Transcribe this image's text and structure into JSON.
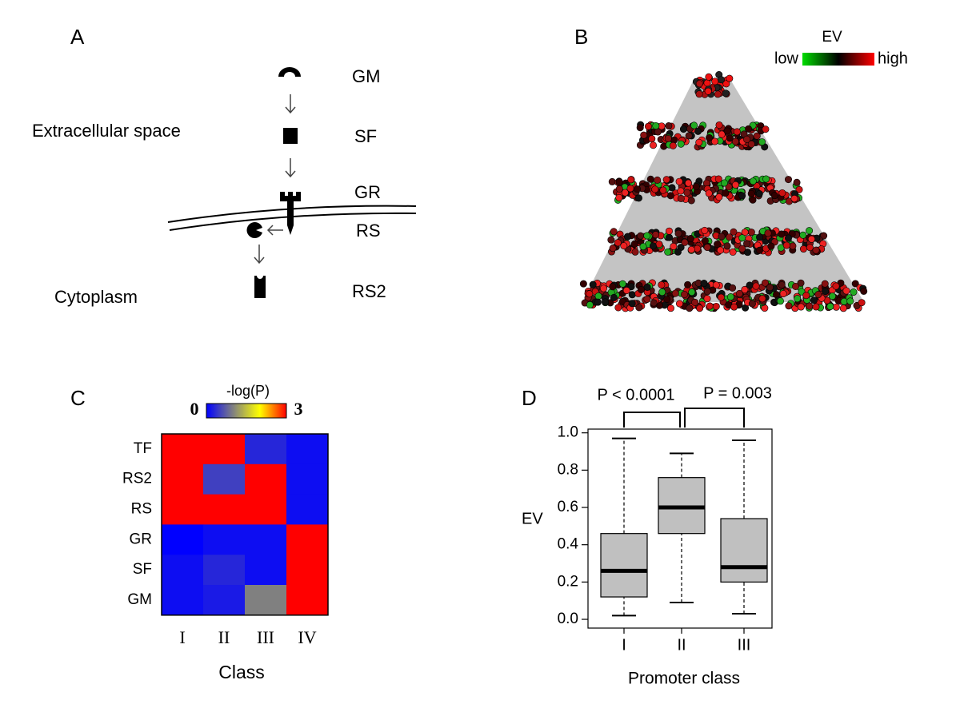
{
  "diagram": {
    "panel": "A",
    "regions": [
      "Extracellular space",
      "Cytoplasm"
    ],
    "labels": [
      "GM",
      "SF",
      "GR",
      "RS",
      "RS2"
    ]
  },
  "network": {
    "panel": "B",
    "legend_title": "EV",
    "low_label": "low",
    "high_label": "high"
  },
  "chart_data": [
    {
      "type": "heatmap",
      "panel": "C",
      "xlabel": "Class",
      "categories": [
        "I",
        "II",
        "III",
        "IV"
      ],
      "rows": [
        "TF",
        "RS2",
        "RS",
        "GR",
        "SF",
        "GM"
      ],
      "values": [
        [
          3,
          3,
          0.3,
          0.1
        ],
        [
          3,
          0.5,
          3,
          0.1
        ],
        [
          3,
          3,
          3,
          0.1
        ],
        [
          0,
          0.1,
          0.1,
          3
        ],
        [
          0.1,
          0.3,
          0.1,
          3
        ],
        [
          0.1,
          0.2,
          1,
          3
        ]
      ],
      "colorbar_label": "-log(P)",
      "zlim": [
        0,
        3
      ],
      "zticks": [
        0,
        3
      ],
      "colors": [
        "#0000ff",
        "#808080",
        "#ffff00",
        "#ff0000"
      ]
    },
    {
      "type": "box",
      "panel": "D",
      "xlabel": "Promoter class",
      "ylabel": "EV",
      "categories": [
        "I",
        "II",
        "III"
      ],
      "whislo": [
        0.02,
        0.09,
        0.03
      ],
      "q1": [
        0.12,
        0.46,
        0.2
      ],
      "med": [
        0.26,
        0.6,
        0.28
      ],
      "q3": [
        0.46,
        0.76,
        0.54
      ],
      "whishi": [
        0.97,
        0.89,
        0.96
      ],
      "color": "#c0c0c0",
      "ylim": [
        -0.047,
        1.02
      ],
      "yticks": [
        {
          "value": 0,
          "label": "0.0"
        },
        {
          "value": 0.2,
          "label": "0.2"
        },
        {
          "value": 0.4,
          "label": "0.4"
        },
        {
          "value": 0.6,
          "label": "0.6"
        },
        {
          "value": 0.8,
          "label": "0.8"
        },
        {
          "value": 1,
          "label": "1.0"
        }
      ],
      "annotations": [
        "P < 0.0001",
        "P = 0.003"
      ]
    }
  ]
}
